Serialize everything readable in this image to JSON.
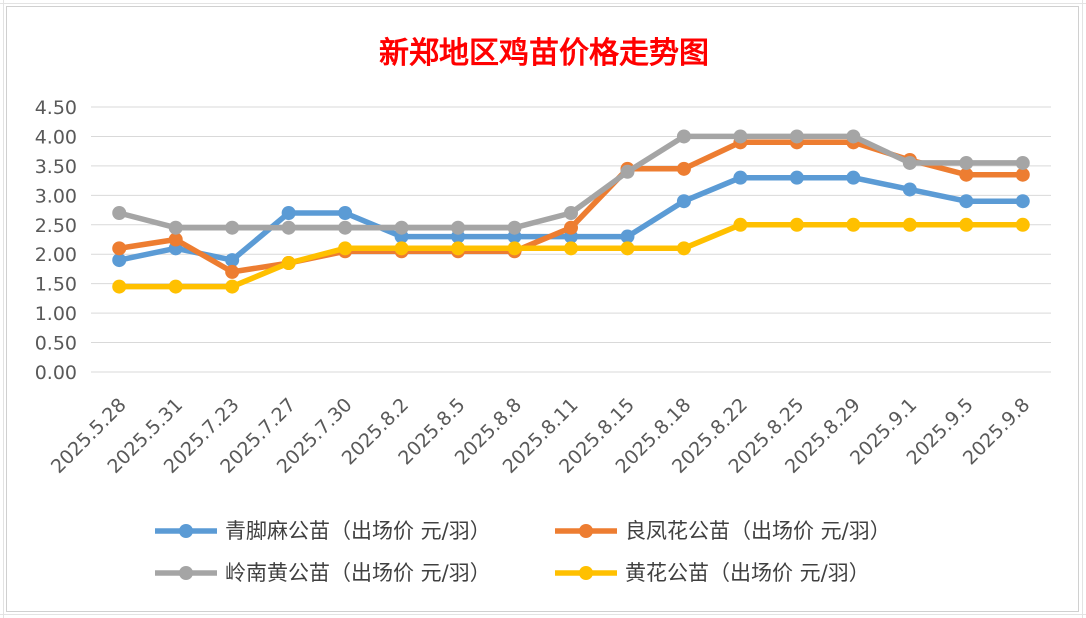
{
  "chart_data": {
    "type": "line",
    "title": "新郑地区鸡苗价格走势图",
    "categories": [
      "2025.5.28",
      "2025.5.31",
      "2025.7.23",
      "2025.7.27",
      "2025.7.30",
      "2025.8.2",
      "2025.8.5",
      "2025.8.8",
      "2025.8.11",
      "2025.8.15",
      "2025.8.18",
      "2025.8.22",
      "2025.8.25",
      "2025.8.29",
      "2025.9.1",
      "2025.9.5",
      "2025.9.8"
    ],
    "ylim": [
      0,
      4.5
    ],
    "yticks": [
      "0.00",
      "0.50",
      "1.00",
      "1.50",
      "2.00",
      "2.50",
      "3.00",
      "3.50",
      "4.00",
      "4.50"
    ],
    "grid": true,
    "legend_position": "bottom",
    "series": [
      {
        "name": "青脚麻公苗（出场价 元/羽）",
        "color": "#5B9BD5",
        "values": [
          1.9,
          2.1,
          1.9,
          2.7,
          2.7,
          2.3,
          2.3,
          2.3,
          2.3,
          2.3,
          2.9,
          3.3,
          3.3,
          3.3,
          3.1,
          2.9,
          2.9
        ]
      },
      {
        "name": "良凤花公苗（出场价 元/羽）",
        "color": "#ED7D31",
        "values": [
          2.1,
          2.25,
          1.7,
          1.85,
          2.05,
          2.05,
          2.05,
          2.05,
          2.45,
          3.45,
          3.45,
          3.9,
          3.9,
          3.9,
          3.6,
          3.35,
          3.35
        ]
      },
      {
        "name": "岭南黄公苗（出场价 元/羽）",
        "color": "#A5A5A5",
        "values": [
          2.7,
          2.45,
          2.45,
          2.45,
          2.45,
          2.45,
          2.45,
          2.45,
          2.7,
          3.4,
          4.0,
          4.0,
          4.0,
          4.0,
          3.55,
          3.55,
          3.55
        ]
      },
      {
        "name": "黄花公苗（出场价 元/羽）",
        "color": "#FFC000",
        "values": [
          1.45,
          1.45,
          1.45,
          1.85,
          2.1,
          2.1,
          2.1,
          2.1,
          2.1,
          2.1,
          2.1,
          2.5,
          2.5,
          2.5,
          2.5,
          2.5,
          2.5
        ]
      }
    ]
  }
}
